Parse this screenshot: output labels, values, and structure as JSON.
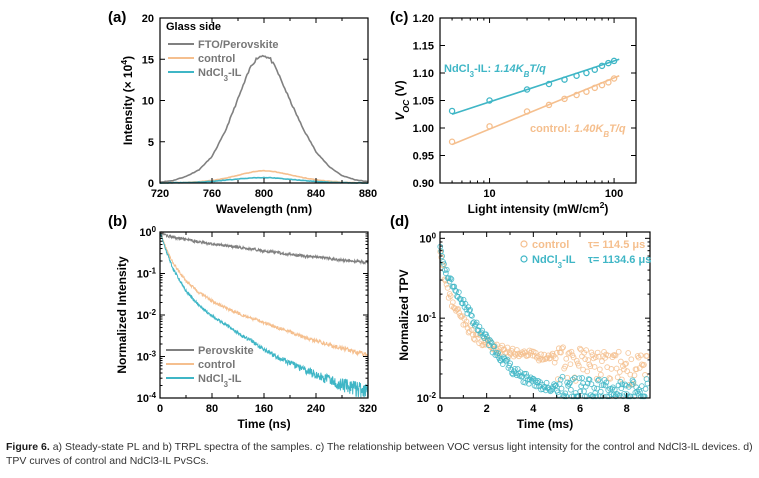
{
  "colors": {
    "perovskite": "#808080",
    "control": "#F5BF8E",
    "ndcl": "#3FB6C6",
    "axis": "#000000"
  },
  "caption": {
    "label": "Figure 6.",
    "text": "a) Steady-state PL and b) TRPL spectra of the samples. c) The relationship between VOC versus light intensity for the control and NdCl3-IL devices. d) TPV curves of control and NdCl3-IL PvSCs."
  },
  "chart_data": [
    {
      "panel": "(a)",
      "type": "line",
      "title": "Glass side",
      "xlabel": "Wavelength (nm)",
      "ylabel": "Intensity (× 10⁴)",
      "xlim": [
        720,
        880
      ],
      "ylim": [
        0,
        20
      ],
      "xticks": [
        "720",
        "760",
        "800",
        "840",
        "880"
      ],
      "yticks": [
        "0",
        "5",
        "10",
        "15",
        "20"
      ],
      "legend": "top-left",
      "x": [
        720,
        730,
        740,
        750,
        760,
        770,
        780,
        790,
        795,
        800,
        805,
        810,
        820,
        830,
        840,
        850,
        860,
        870,
        880
      ],
      "series": [
        {
          "name": "FTO/Perovskite",
          "color": "perovskite",
          "values": [
            0.1,
            0.3,
            0.8,
            1.6,
            3.2,
            6.2,
            10.2,
            14.2,
            15.2,
            15.5,
            15.0,
            13.6,
            10.0,
            6.6,
            3.8,
            2.0,
            0.9,
            0.4,
            0.15
          ]
        },
        {
          "name": "control",
          "color": "control",
          "values": [
            0.0,
            0.03,
            0.07,
            0.15,
            0.3,
            0.55,
            0.95,
            1.3,
            1.43,
            1.48,
            1.44,
            1.32,
            1.0,
            0.65,
            0.38,
            0.2,
            0.09,
            0.04,
            0.01
          ]
        },
        {
          "name": "NdCl3-IL",
          "color": "ndcl",
          "values": [
            0.0,
            0.02,
            0.05,
            0.1,
            0.2,
            0.33,
            0.48,
            0.6,
            0.64,
            0.66,
            0.64,
            0.58,
            0.45,
            0.3,
            0.18,
            0.09,
            0.04,
            0.02,
            0.0
          ]
        }
      ]
    },
    {
      "panel": "(b)",
      "type": "line",
      "xlabel": "Time (ns)",
      "ylabel": "Normalized Intensity",
      "xlim": [
        0,
        320
      ],
      "ylim": [
        0.0001,
        1
      ],
      "yscale": "log",
      "xticks": [
        "0",
        "80",
        "160",
        "240",
        "320"
      ],
      "yticks": [
        "10⁻⁴",
        "10⁻³",
        "10⁻²",
        "10⁻¹",
        "10⁰"
      ],
      "legend": "bottom-left",
      "x": [
        0,
        10,
        20,
        40,
        60,
        80,
        100,
        120,
        140,
        160,
        180,
        200,
        220,
        240,
        260,
        280,
        300,
        320
      ],
      "series": [
        {
          "name": "Perovskite",
          "color": "perovskite",
          "values": [
            1.0,
            0.82,
            0.75,
            0.66,
            0.58,
            0.52,
            0.47,
            0.43,
            0.39,
            0.35,
            0.32,
            0.29,
            0.27,
            0.25,
            0.23,
            0.21,
            0.2,
            0.18
          ]
        },
        {
          "name": "control",
          "color": "control",
          "values": [
            1.0,
            0.38,
            0.18,
            0.066,
            0.035,
            0.022,
            0.015,
            0.011,
            0.0085,
            0.0065,
            0.005,
            0.0039,
            0.003,
            0.0024,
            0.0019,
            0.0016,
            0.0013,
            0.0011
          ]
        },
        {
          "name": "NdCl3-IL",
          "color": "ndcl",
          "values": [
            1.0,
            0.33,
            0.13,
            0.038,
            0.017,
            0.0095,
            0.006,
            0.0037,
            0.0024,
            0.0015,
            0.001,
            0.0007,
            0.0005,
            0.00037,
            0.00028,
            0.00022,
            0.00018,
            0.00015
          ]
        }
      ]
    },
    {
      "panel": "(c)",
      "type": "scatter",
      "xlabel": "Light intensity (mW/cm²)",
      "ylabel": "VOC (V)",
      "xlim": [
        4,
        150
      ],
      "ylim": [
        0.9,
        1.2
      ],
      "xscale": "log",
      "xticks": [
        "10",
        "100"
      ],
      "yticks": [
        "0.90",
        "0.95",
        "1.00",
        "1.05",
        "1.10",
        "1.15",
        "1.20"
      ],
      "annotations": [
        {
          "prefix": "NdCl3-IL: ",
          "formula": "1.14KBT/q",
          "color": "ndcl"
        },
        {
          "prefix": "control: ",
          "formula": "1.40KBT/q",
          "color": "control"
        }
      ],
      "x": [
        5,
        10,
        20,
        30,
        40,
        50,
        60,
        70,
        80,
        90,
        100
      ],
      "series": [
        {
          "name": "NdCl3-IL",
          "color": "ndcl",
          "values": [
            1.031,
            1.05,
            1.07,
            1.08,
            1.088,
            1.095,
            1.1,
            1.106,
            1.113,
            1.118,
            1.122
          ],
          "fit": [
            [
              5,
              1.025
            ],
            [
              110,
              1.125
            ]
          ]
        },
        {
          "name": "control",
          "color": "control",
          "values": [
            0.975,
            1.003,
            1.03,
            1.042,
            1.053,
            1.06,
            1.066,
            1.073,
            1.078,
            1.083,
            1.09
          ],
          "fit": [
            [
              5,
              0.97
            ],
            [
              110,
              1.095
            ]
          ]
        }
      ]
    },
    {
      "panel": "(d)",
      "type": "scatter",
      "xlabel": "Time (ms)",
      "ylabel": "Normalized TPV",
      "xlim": [
        0,
        9
      ],
      "ylim": [
        0.01,
        1.2
      ],
      "yscale": "log",
      "xticks": [
        "0",
        "2",
        "4",
        "6",
        "8"
      ],
      "yticks": [
        "10⁻²",
        "10⁻¹",
        "10⁰"
      ],
      "legend": "top-right",
      "series": [
        {
          "name": "control",
          "tau": "τ= 114.5 μs",
          "color": "control",
          "decay_tau_ms": 0.1145,
          "floor": 0.02
        },
        {
          "name": "NdCl3-IL",
          "tau": "τ= 1134.6 μs",
          "color": "ndcl",
          "decay_tau_ms": 1.1346,
          "floor": 0.02
        }
      ]
    }
  ]
}
